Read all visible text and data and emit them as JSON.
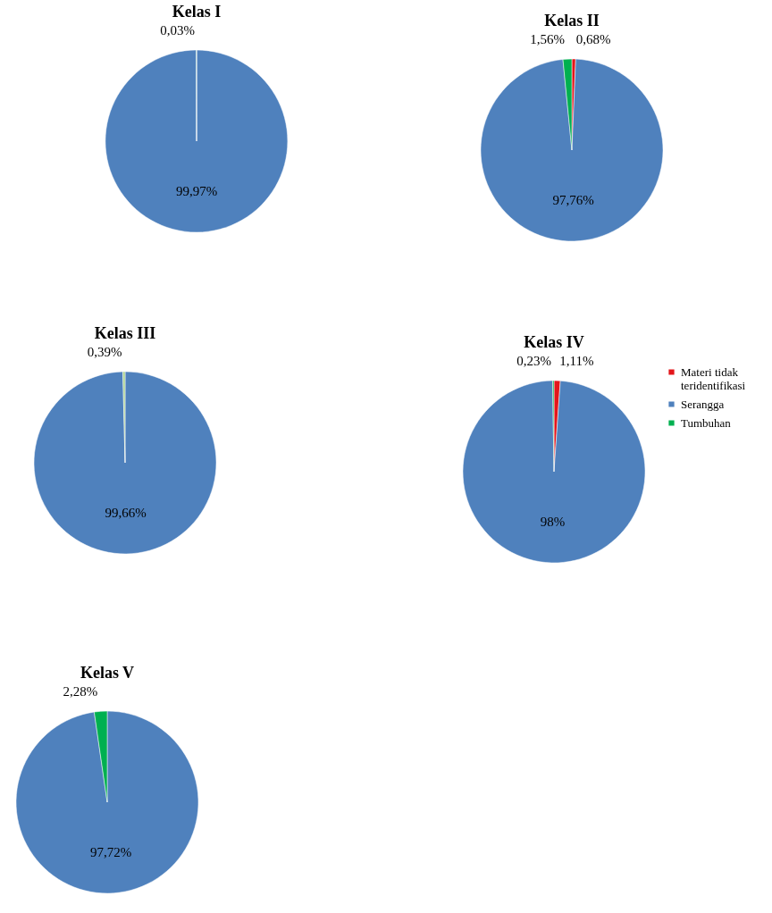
{
  "chart_data": [
    {
      "type": "pie",
      "title": "Kelas I",
      "categories": [
        null,
        null
      ],
      "values": [
        99.97,
        0.03
      ],
      "colors": [
        "#4f81bd",
        "#00b050"
      ],
      "value_labels": [
        "99,97%",
        "0,03%"
      ]
    },
    {
      "type": "pie",
      "title": "Kelas II",
      "categories": [
        null,
        null,
        null
      ],
      "values": [
        0.68,
        97.76,
        1.56
      ],
      "colors": [
        "#e3161b",
        "#4f81bd",
        "#00b050"
      ],
      "value_labels": [
        "0,68%",
        "97,76%",
        "1,56%"
      ]
    },
    {
      "type": "pie",
      "title": "Kelas III",
      "categories": [
        null,
        null
      ],
      "values": [
        99.66,
        0.39
      ],
      "colors": [
        "#4f81bd",
        "#a9d18e"
      ],
      "value_labels": [
        "99,66%",
        "0,39%"
      ]
    },
    {
      "type": "pie",
      "title": "Kelas IV",
      "categories": [
        "Materi tidak teridentifikasi",
        "Serangga",
        "Tumbuhan"
      ],
      "values": [
        1.11,
        98,
        0.23
      ],
      "colors": [
        "#e3161b",
        "#4f81bd",
        "#00b050"
      ],
      "value_labels": [
        "1,11%",
        "98%",
        "0,23%"
      ],
      "legend": "right"
    },
    {
      "type": "pie",
      "title": "Kelas V",
      "categories": [
        null,
        null
      ],
      "values": [
        97.72,
        2.28
      ],
      "colors": [
        "#4f81bd",
        "#00b050"
      ],
      "value_labels": [
        "97,72%",
        "2,28%"
      ]
    }
  ]
}
